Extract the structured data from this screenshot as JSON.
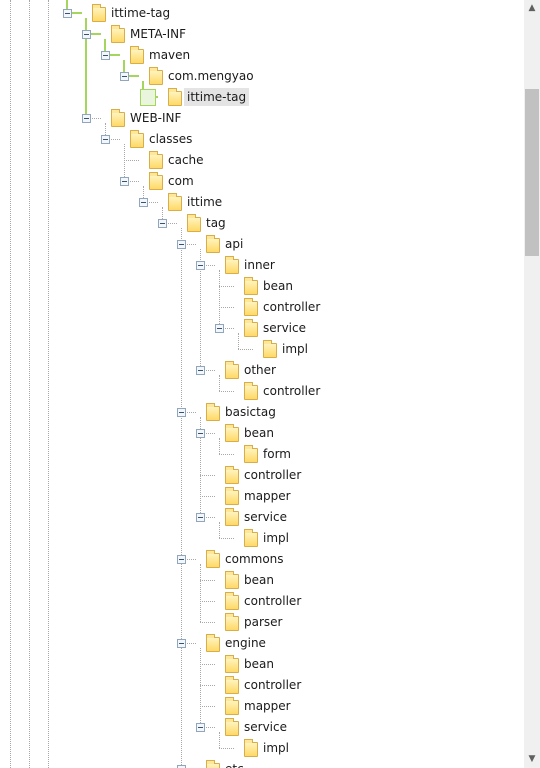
{
  "tree": {
    "nodes": [
      {
        "label": "ittime-tag",
        "depth": 4,
        "expanded": true
      },
      {
        "label": "META-INF",
        "depth": 5,
        "expanded": true
      },
      {
        "label": "maven",
        "depth": 6,
        "expanded": true
      },
      {
        "label": "com.mengyao",
        "depth": 7,
        "expanded": true
      },
      {
        "label": "ittime-tag",
        "depth": 8,
        "expanded": false,
        "selected": true
      },
      {
        "label": "WEB-INF",
        "depth": 5,
        "expanded": true
      },
      {
        "label": "classes",
        "depth": 6,
        "expanded": true
      },
      {
        "label": "cache",
        "depth": 7,
        "expanded": false
      },
      {
        "label": "com",
        "depth": 7,
        "expanded": true
      },
      {
        "label": "ittime",
        "depth": 8,
        "expanded": true
      },
      {
        "label": "tag",
        "depth": 9,
        "expanded": true
      },
      {
        "label": "api",
        "depth": 10,
        "expanded": true
      },
      {
        "label": "inner",
        "depth": 11,
        "expanded": true
      },
      {
        "label": "bean",
        "depth": 12,
        "expanded": false
      },
      {
        "label": "controller",
        "depth": 12,
        "expanded": false
      },
      {
        "label": "service",
        "depth": 12,
        "expanded": true
      },
      {
        "label": "impl",
        "depth": 13,
        "expanded": false
      },
      {
        "label": "other",
        "depth": 11,
        "expanded": true
      },
      {
        "label": "controller",
        "depth": 12,
        "expanded": false
      },
      {
        "label": "basictag",
        "depth": 10,
        "expanded": true
      },
      {
        "label": "bean",
        "depth": 11,
        "expanded": true
      },
      {
        "label": "form",
        "depth": 12,
        "expanded": false
      },
      {
        "label": "controller",
        "depth": 11,
        "expanded": false
      },
      {
        "label": "mapper",
        "depth": 11,
        "expanded": false
      },
      {
        "label": "service",
        "depth": 11,
        "expanded": true
      },
      {
        "label": "impl",
        "depth": 12,
        "expanded": false
      },
      {
        "label": "commons",
        "depth": 10,
        "expanded": true
      },
      {
        "label": "bean",
        "depth": 11,
        "expanded": false
      },
      {
        "label": "controller",
        "depth": 11,
        "expanded": false
      },
      {
        "label": "parser",
        "depth": 11,
        "expanded": false
      },
      {
        "label": "engine",
        "depth": 10,
        "expanded": true
      },
      {
        "label": "bean",
        "depth": 11,
        "expanded": false
      },
      {
        "label": "controller",
        "depth": 11,
        "expanded": false
      },
      {
        "label": "mapper",
        "depth": 11,
        "expanded": false
      },
      {
        "label": "service",
        "depth": 11,
        "expanded": true
      },
      {
        "label": "impl",
        "depth": 12,
        "expanded": false
      },
      {
        "label": "etc",
        "depth": 10,
        "expanded": true
      }
    ],
    "highlight_path": [
      0,
      1,
      2,
      3,
      4
    ]
  },
  "scrollbar": {
    "up_icon": "▲",
    "down_icon": "▼",
    "position": 0.17
  },
  "colors": {
    "guide": "#a4d65e",
    "selection": "#e4e4e4",
    "folder": "#ffd966"
  }
}
